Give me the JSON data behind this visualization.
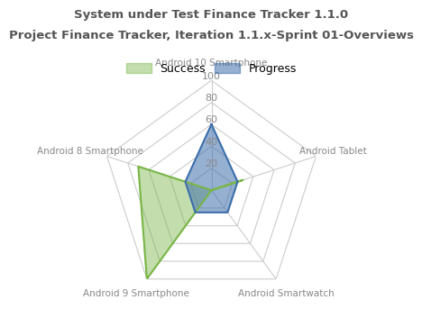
{
  "title_line1": "System under Test Finance Tracker 1.1.0",
  "title_line2": "Project Finance Tracker, Iteration 1.1.x-Sprint 01-Overviews",
  "categories": [
    "Android 10 Smartphone",
    "Android Tablet",
    "Android Smartwatch",
    "Android 9 Smartphone",
    "Android 8 Smartphone"
  ],
  "series": [
    {
      "name": "Success",
      "values": [
        0,
        30,
        0,
        100,
        70
      ],
      "color": "#7ab648",
      "alpha": 0.45,
      "linecolor": "#7ab648"
    },
    {
      "name": "Progress",
      "values": [
        60,
        25,
        25,
        25,
        25
      ],
      "color": "#3e6fac",
      "alpha": 0.55,
      "linecolor": "#3e6fac"
    }
  ],
  "r_max": 100,
  "r_ticks": [
    20,
    40,
    60,
    80,
    100
  ],
  "grid_color": "#cccccc",
  "label_color": "#888888",
  "title_color": "#555555",
  "background_color": "#ffffff",
  "title_fontsize": 9.5,
  "label_fontsize": 7.5,
  "tick_fontsize": 8,
  "legend_fontsize": 9
}
